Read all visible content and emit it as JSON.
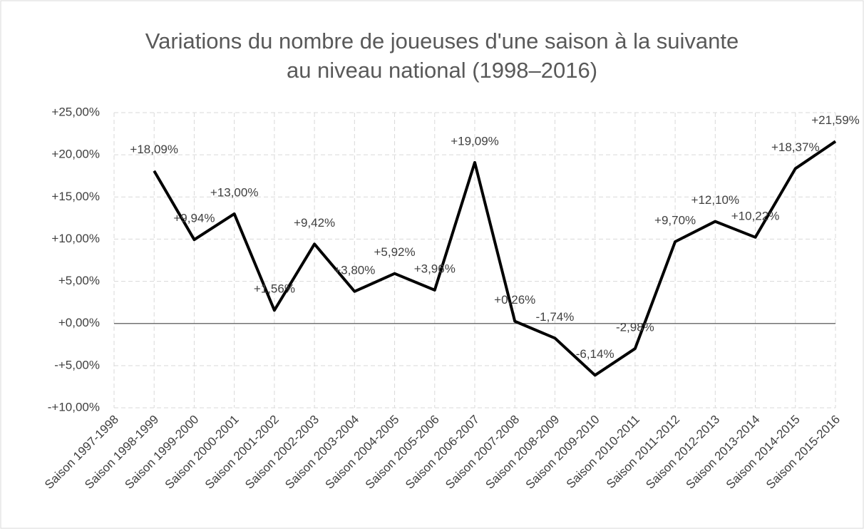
{
  "chart_data": {
    "type": "line",
    "title": [
      "Variations du nombre de joueuses d'une saison à la suivante",
      "au niveau national (1998–2016)"
    ],
    "categories": [
      "Saison 1997-1998",
      "Saison 1998-1999",
      "Saison 1999-2000",
      "Saison 2000-2001",
      "Saison 2001-2002",
      "Saison 2002-2003",
      "Saison 2003-2004",
      "Saison 2004-2005",
      "Saison 2005-2006",
      "Saison 2006-2007",
      "Saison 2007-2008",
      "Saison 2008-2009",
      "Saison 2009-2010",
      "Saison 2010-2011",
      "Saison 2011-2012",
      "Saison 2012-2013",
      "Saison 2013-2014",
      "Saison 2014-2015",
      "Saison 2015-2016"
    ],
    "values": [
      null,
      18.09,
      9.94,
      13.0,
      1.56,
      9.42,
      3.8,
      5.92,
      3.96,
      19.09,
      0.26,
      -1.74,
      -6.14,
      -2.98,
      9.7,
      12.1,
      10.22,
      18.37,
      21.59
    ],
    "value_labels": [
      null,
      "+18,09%",
      "+9,94%",
      "+13,00%",
      "+1,56%",
      "+9,42%",
      "+3,80%",
      "+5,92%",
      "+3,96%",
      "+19,09%",
      "+0,26%",
      "-1,74%",
      "-6,14%",
      "-2,98%",
      "+9,70%",
      "+12,10%",
      "+10,22%",
      "+18,37%",
      "+21,59%"
    ],
    "color": "#000000",
    "ylim": [
      -10,
      25
    ],
    "yticks": [
      {
        "value": -10,
        "label": "-+10,00%"
      },
      {
        "value": -5,
        "label": "-+5,00%"
      },
      {
        "value": 0,
        "label": "+0,00%"
      },
      {
        "value": 5,
        "label": "+5,00%"
      },
      {
        "value": 10,
        "label": "+10,00%"
      },
      {
        "value": 15,
        "label": "+15,00%"
      },
      {
        "value": 20,
        "label": "+20,00%"
      },
      {
        "value": 25,
        "label": "+25,00%"
      }
    ],
    "grid": true
  }
}
